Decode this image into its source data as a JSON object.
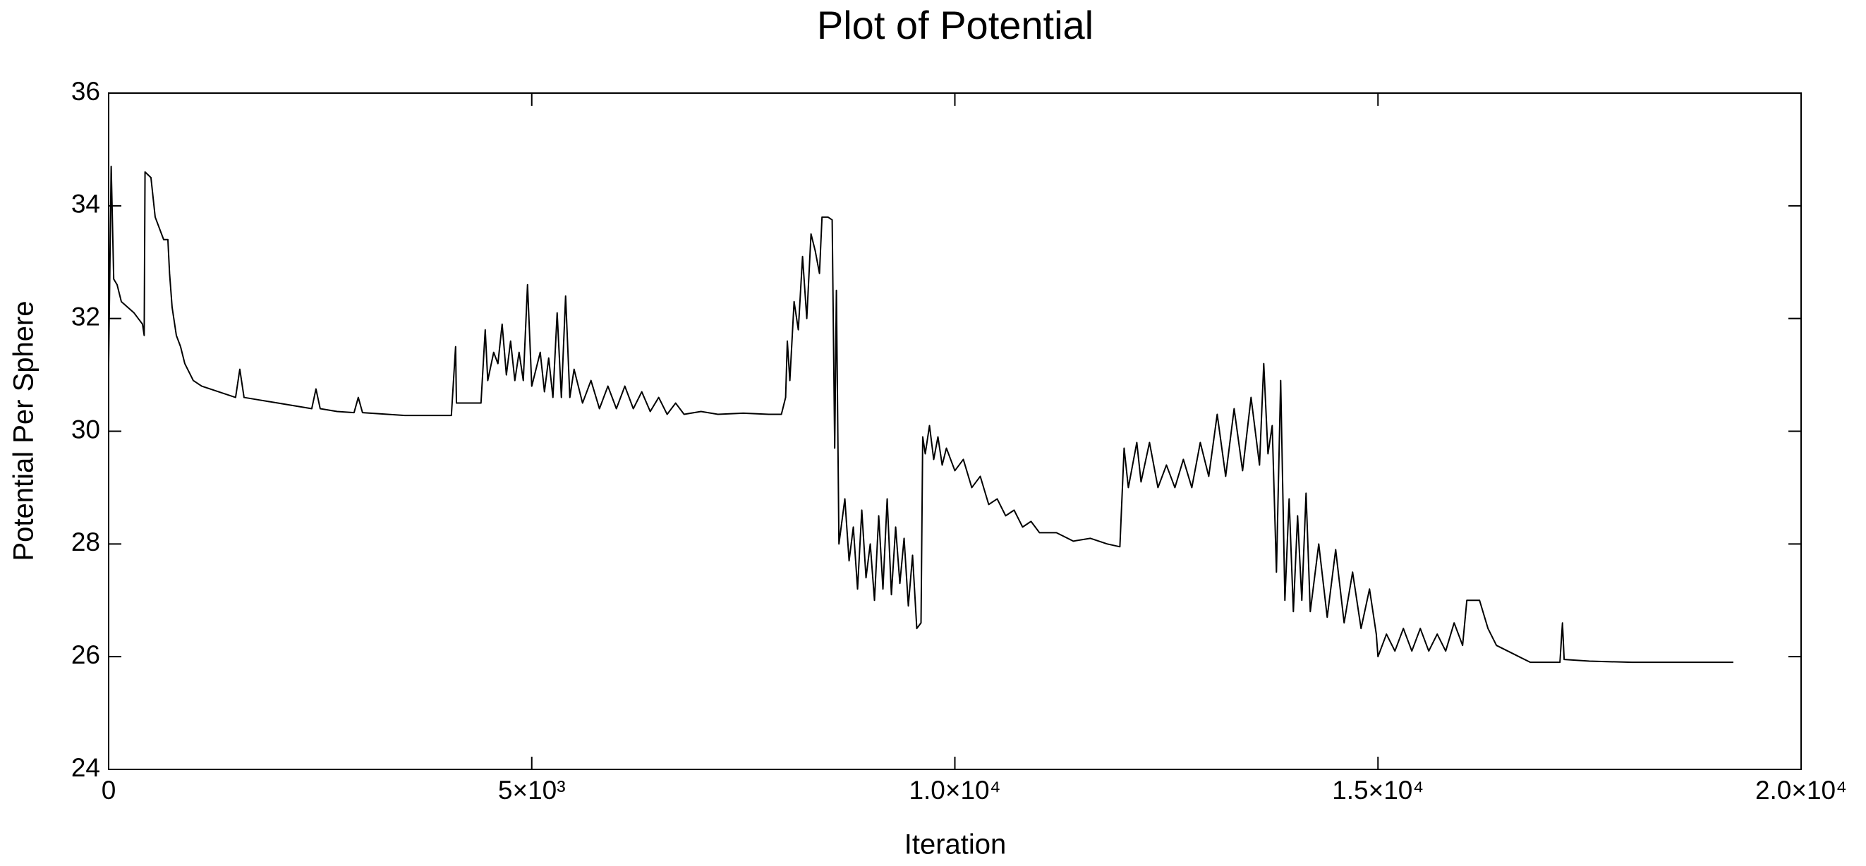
{
  "chart_data": {
    "type": "line",
    "title": "Plot of Potential",
    "x_label": "Iteration",
    "y_label": "Potential Per Sphere",
    "xlim": [
      0,
      20000
    ],
    "ylim": [
      24,
      36
    ],
    "xticks": [
      0,
      {
        "value": 5000,
        "label": "5×10³"
      },
      {
        "value": 10000,
        "label": "1.0×10⁴"
      },
      {
        "value": 15000,
        "label": "1.5×10⁴"
      },
      {
        "value": 20000,
        "label": "2.0×10⁴"
      }
    ],
    "yticks": [
      24,
      26,
      28,
      30,
      32,
      34,
      36
    ],
    "series": [
      {
        "color": "#000000",
        "x": [
          0,
          30,
          60,
          100,
          150,
          300,
          350,
          400,
          420,
          430,
          500,
          550,
          600,
          650,
          700,
          720,
          750,
          800,
          850,
          900,
          1000,
          1100,
          1300,
          1500,
          1550,
          1600,
          1800,
          2000,
          2200,
          2400,
          2450,
          2500,
          2700,
          2900,
          2950,
          3000,
          3500,
          4000,
          4050,
          4100,
          4110,
          4300,
          4400,
          4450,
          4480,
          4550,
          4600,
          4650,
          4700,
          4750,
          4800,
          4850,
          4900,
          4950,
          5000,
          5100,
          5150,
          5200,
          5250,
          5300,
          5350,
          5400,
          5450,
          5500,
          5600,
          5700,
          5800,
          5900,
          6000,
          6100,
          6200,
          6300,
          6400,
          6500,
          6600,
          6700,
          6800,
          7000,
          7200,
          7500,
          7800,
          7950,
          8000,
          8020,
          8050,
          8100,
          8150,
          8200,
          8250,
          8300,
          8350,
          8400,
          8430,
          8500,
          8550,
          8580,
          8600,
          8630,
          8700,
          8750,
          8800,
          8850,
          8900,
          8950,
          9000,
          9050,
          9100,
          9150,
          9200,
          9250,
          9300,
          9350,
          9400,
          9450,
          9500,
          9550,
          9600,
          9620,
          9650,
          9700,
          9750,
          9800,
          9850,
          9900,
          10000,
          10100,
          10200,
          10300,
          10400,
          10500,
          10600,
          10700,
          10800,
          10900,
          11000,
          11200,
          11400,
          11600,
          11800,
          11950,
          12000,
          12050,
          12150,
          12200,
          12300,
          12400,
          12500,
          12600,
          12700,
          12800,
          12900,
          13000,
          13100,
          13200,
          13300,
          13400,
          13500,
          13600,
          13650,
          13700,
          13750,
          13800,
          13850,
          13900,
          13950,
          14000,
          14050,
          14100,
          14150,
          14200,
          14300,
          14400,
          14500,
          14600,
          14700,
          14800,
          14900,
          14980,
          15000,
          15100,
          15200,
          15300,
          15400,
          15500,
          15600,
          15700,
          15800,
          15900,
          16000,
          16050,
          16200,
          16300,
          16400,
          16600,
          16800,
          17000,
          17150,
          17180,
          17200,
          17500,
          18000,
          19000,
          19200
        ],
        "values": [
          31.2,
          34.7,
          32.7,
          32.6,
          32.3,
          32.1,
          32.0,
          31.9,
          31.7,
          34.6,
          34.5,
          33.8,
          33.6,
          33.4,
          33.4,
          32.8,
          32.2,
          31.7,
          31.5,
          31.2,
          30.9,
          30.8,
          30.7,
          30.6,
          31.1,
          30.6,
          30.55,
          30.5,
          30.45,
          30.4,
          30.75,
          30.4,
          30.35,
          30.33,
          30.6,
          30.33,
          30.28,
          30.28,
          30.28,
          31.5,
          30.5,
          30.5,
          30.5,
          31.8,
          30.9,
          31.4,
          31.2,
          31.9,
          31.0,
          31.6,
          30.9,
          31.4,
          30.9,
          32.6,
          30.8,
          31.4,
          30.7,
          31.3,
          30.6,
          32.1,
          30.6,
          32.4,
          30.6,
          31.1,
          30.5,
          30.9,
          30.4,
          30.8,
          30.4,
          30.8,
          30.4,
          30.7,
          30.35,
          30.6,
          30.3,
          30.5,
          30.3,
          30.35,
          30.3,
          30.32,
          30.3,
          30.3,
          30.6,
          31.6,
          30.9,
          32.3,
          31.8,
          33.1,
          32.0,
          33.5,
          33.2,
          32.8,
          33.8,
          33.8,
          33.75,
          29.7,
          32.5,
          28.0,
          28.8,
          27.7,
          28.3,
          27.2,
          28.6,
          27.4,
          28.0,
          27.0,
          28.5,
          27.2,
          28.8,
          27.1,
          28.3,
          27.3,
          28.1,
          26.9,
          27.8,
          26.5,
          26.6,
          29.9,
          29.6,
          30.1,
          29.5,
          29.9,
          29.4,
          29.7,
          29.3,
          29.5,
          29.0,
          29.2,
          28.7,
          28.8,
          28.5,
          28.6,
          28.3,
          28.4,
          28.2,
          28.2,
          28.05,
          28.1,
          28.0,
          27.95,
          29.7,
          29.0,
          29.8,
          29.1,
          29.8,
          29.0,
          29.4,
          29.0,
          29.5,
          29.0,
          29.8,
          29.2,
          30.3,
          29.2,
          30.4,
          29.3,
          30.6,
          29.4,
          31.2,
          29.6,
          30.1,
          27.5,
          30.9,
          27.0,
          28.8,
          26.8,
          28.5,
          27.0,
          28.9,
          26.8,
          28.0,
          26.7,
          27.9,
          26.6,
          27.5,
          26.5,
          27.2,
          26.4,
          26.0,
          26.4,
          26.1,
          26.5,
          26.1,
          26.5,
          26.1,
          26.4,
          26.1,
          26.6,
          26.2,
          27.0,
          27.0,
          26.5,
          26.2,
          26.05,
          25.9,
          25.9,
          25.9,
          26.6,
          25.95,
          25.92,
          25.9,
          25.9,
          25.9
        ]
      }
    ]
  }
}
